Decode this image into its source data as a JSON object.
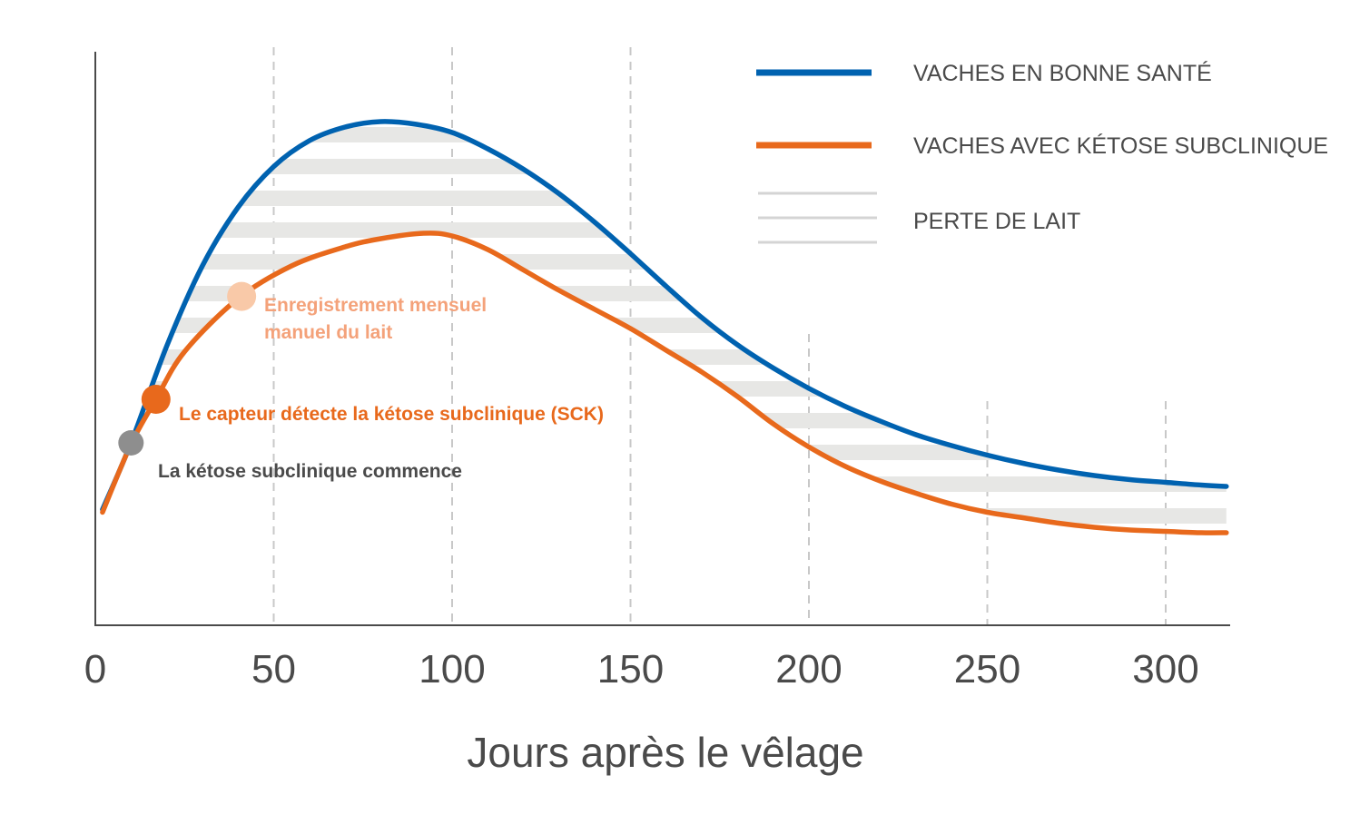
{
  "chart_data": {
    "type": "line",
    "xlabel": "Jours après le vêlage",
    "ylabel": "",
    "xlim": [
      0,
      317
    ],
    "x_ticks": [
      0,
      50,
      100,
      150,
      200,
      250,
      300
    ],
    "grid": "vertical dashed at x ticks",
    "legend_position": "top-right",
    "series": [
      {
        "name": "VACHES EN BONNE SANTÉ",
        "color": "#0062b0",
        "x": [
          2,
          10,
          20,
          30,
          40,
          50,
          60,
          70,
          80,
          90,
          100,
          110,
          120,
          130,
          140,
          150,
          160,
          170,
          180,
          190,
          200,
          210,
          220,
          230,
          240,
          250,
          260,
          270,
          280,
          290,
          300,
          310,
          317
        ],
        "y": [
          8.5,
          13.4,
          20.5,
          26.4,
          30.7,
          33.7,
          35.6,
          36.6,
          37.0,
          36.8,
          36.2,
          35.0,
          33.5,
          31.7,
          29.6,
          27.3,
          24.9,
          22.6,
          20.6,
          18.9,
          17.4,
          16.1,
          15.0,
          14.0,
          13.2,
          12.5,
          11.9,
          11.4,
          11.0,
          10.7,
          10.5,
          10.3,
          10.2
        ]
      },
      {
        "name": "VACHES AVEC KÉTOSE SUBCLINIQUE",
        "color": "#e8691c",
        "x": [
          2,
          10,
          17,
          25,
          40,
          55,
          70,
          80,
          92,
          100,
          110,
          120,
          130,
          140,
          150,
          160,
          170,
          180,
          190,
          200,
          210,
          220,
          230,
          240,
          250,
          260,
          270,
          280,
          290,
          300,
          310,
          317
        ],
        "y": [
          8.3,
          13.3,
          16.6,
          20.1,
          24.0,
          26.4,
          27.8,
          28.4,
          28.8,
          28.6,
          27.6,
          26.1,
          24.6,
          23.2,
          21.8,
          20.2,
          18.6,
          16.8,
          14.8,
          13.1,
          11.7,
          10.6,
          9.7,
          8.9,
          8.3,
          7.9,
          7.5,
          7.2,
          7.0,
          6.9,
          6.8,
          6.8
        ]
      }
    ],
    "fill_between": {
      "name": "PERTE DE LAIT",
      "color": "#e7e7e5",
      "pattern": "horizontal stripes"
    },
    "annotations": [
      {
        "text": "La kétose subclinique commence",
        "x": 10,
        "color": "#8e8e8e"
      },
      {
        "text": "Le capteur détecte la kétose subclinique (SCK)",
        "x": 17,
        "color": "#e8691c"
      },
      {
        "text": [
          "Enregistrement mensuel",
          "manuel du lait"
        ],
        "x": 41,
        "color": "#f4a27a",
        "marker_color": "#f9c9a8"
      }
    ]
  },
  "colors": {
    "axis": "#4a4a4a",
    "grid": "#c8c8c8",
    "text": "#4a4a4a"
  }
}
